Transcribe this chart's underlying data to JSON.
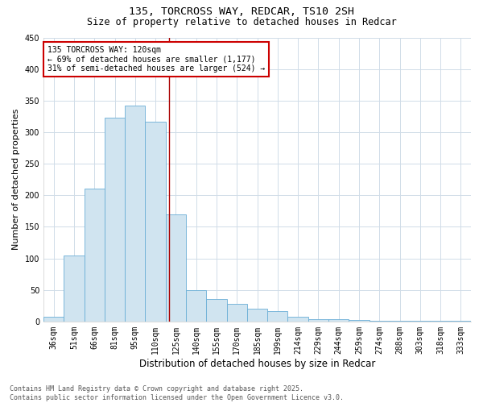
{
  "title_line1": "135, TORCROSS WAY, REDCAR, TS10 2SH",
  "title_line2": "Size of property relative to detached houses in Redcar",
  "xlabel": "Distribution of detached houses by size in Redcar",
  "ylabel": "Number of detached properties",
  "categories": [
    "36sqm",
    "51sqm",
    "66sqm",
    "81sqm",
    "95sqm",
    "110sqm",
    "125sqm",
    "140sqm",
    "155sqm",
    "170sqm",
    "185sqm",
    "199sqm",
    "214sqm",
    "229sqm",
    "244sqm",
    "259sqm",
    "274sqm",
    "288sqm",
    "303sqm",
    "318sqm",
    "333sqm"
  ],
  "values": [
    7,
    105,
    210,
    323,
    342,
    317,
    170,
    50,
    35,
    28,
    20,
    17,
    8,
    4,
    3,
    2,
    1,
    1,
    1,
    1,
    1
  ],
  "bar_color": "#d0e4f0",
  "bar_edge_color": "#6aaed6",
  "vline_x": 5.65,
  "vline_color": "#aa0000",
  "annotation_text": "135 TORCROSS WAY: 120sqm\n← 69% of detached houses are smaller (1,177)\n31% of semi-detached houses are larger (524) →",
  "annotation_box_facecolor": "#ffffff",
  "annotation_box_edgecolor": "#cc0000",
  "ylim": [
    0,
    450
  ],
  "yticks": [
    0,
    50,
    100,
    150,
    200,
    250,
    300,
    350,
    400,
    450
  ],
  "bg_color": "#ffffff",
  "plot_bg_color": "#ffffff",
  "grid_color": "#d0dce8",
  "footnote": "Contains HM Land Registry data © Crown copyright and database right 2025.\nContains public sector information licensed under the Open Government Licence v3.0.",
  "title_fontsize": 9.5,
  "subtitle_fontsize": 8.5,
  "ylabel_fontsize": 8,
  "xlabel_fontsize": 8.5,
  "tick_fontsize": 7,
  "annot_fontsize": 7,
  "footnote_fontsize": 6
}
